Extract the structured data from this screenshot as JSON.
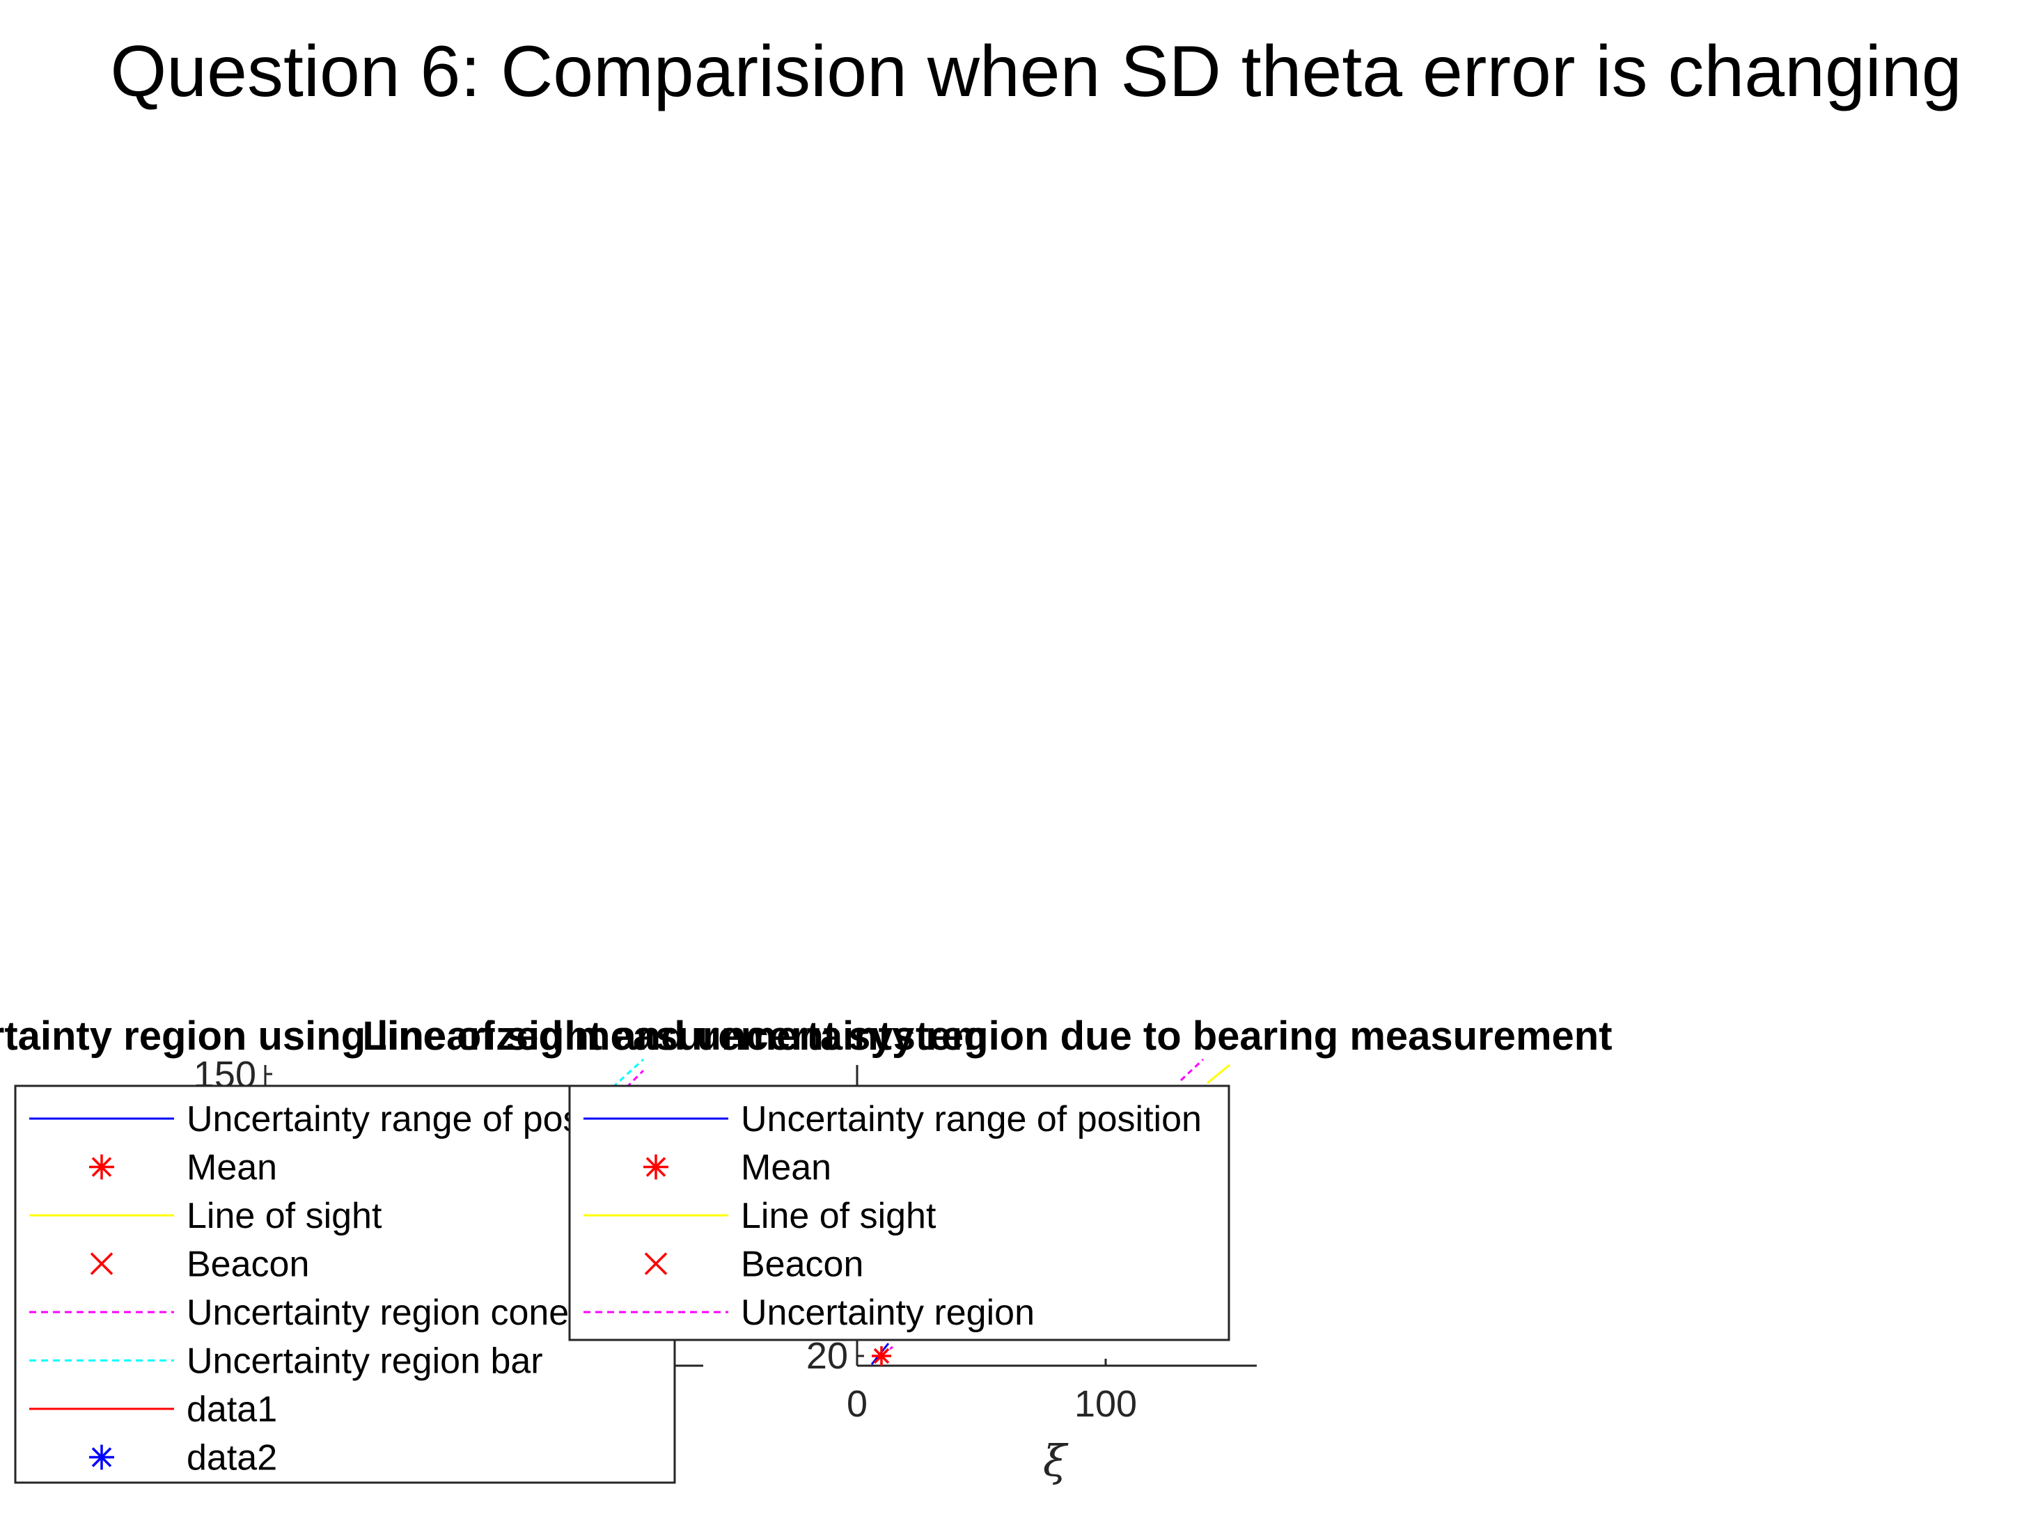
{
  "figure": {
    "suptitle": "Question 6: Comparision when SD theta error is changing"
  },
  "colors": {
    "uncertainty_range": "#0000ff",
    "mean": "#ff0000",
    "line_of_sight": "#ffff00",
    "beacon": "#ff0000",
    "uncertainty_cone": "#ff00ff",
    "uncertainty_bar": "#00ffff",
    "data1": "#ff0000",
    "data2": "#0000ff"
  },
  "chart_data": [
    {
      "type": "line",
      "title": "Uncertainty region using linearized measurement system",
      "xlabel": "",
      "ylabel": "",
      "y_ticks": [
        "150"
      ],
      "legend_placement": "bottom-left",
      "series": [
        {
          "name": "Uncertainty range of position",
          "style": "solid",
          "color": "#0000ff"
        },
        {
          "name": "Mean",
          "style": "marker-asterisk",
          "color": "#ff0000"
        },
        {
          "name": "Line of sight",
          "style": "solid",
          "color": "#ffff00"
        },
        {
          "name": "Beacon",
          "style": "marker-x",
          "color": "#ff0000"
        },
        {
          "name": "Uncertainty region cone",
          "style": "dashed",
          "color": "#ff00ff"
        },
        {
          "name": "Uncertainty region bar",
          "style": "dashed",
          "color": "#00ffff"
        },
        {
          "name": "data1",
          "style": "solid",
          "color": "#ff0000"
        },
        {
          "name": "data2",
          "style": "marker-asterisk",
          "color": "#0000ff"
        }
      ]
    },
    {
      "type": "line",
      "title": "Line of sight and uncertainty region due to bearing measurement",
      "xlabel": "ξ",
      "ylabel": "",
      "x_ticks": [
        "0",
        "100"
      ],
      "y_ticks": [
        "20"
      ],
      "xlim": [
        0,
        160
      ],
      "legend_placement": "top-left",
      "series": [
        {
          "name": "Uncertainty range of position",
          "style": "solid",
          "color": "#0000ff"
        },
        {
          "name": "Mean",
          "style": "marker-asterisk",
          "color": "#ff0000",
          "x": [
            10
          ],
          "y": [
            20
          ]
        },
        {
          "name": "Line of sight",
          "style": "solid",
          "color": "#ffff00"
        },
        {
          "name": "Beacon",
          "style": "marker-x",
          "color": "#ff0000"
        },
        {
          "name": "Uncertainty region",
          "style": "dashed",
          "color": "#ff00ff"
        }
      ]
    }
  ]
}
